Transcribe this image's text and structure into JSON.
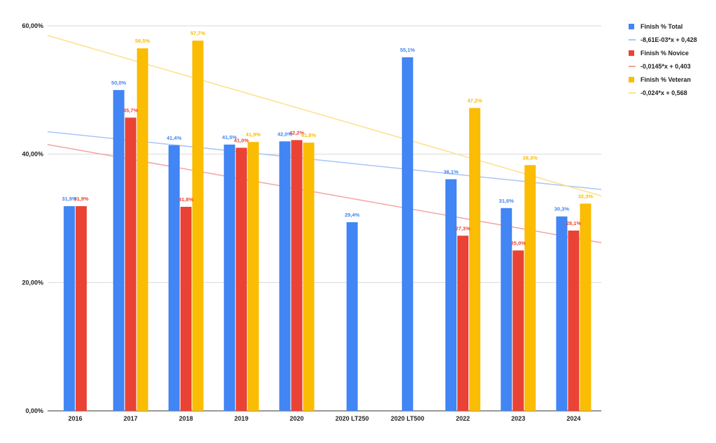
{
  "chart_data": {
    "type": "bar",
    "title": "",
    "xlabel": "",
    "ylabel": "",
    "ylim": [
      0,
      60
    ],
    "y_ticks": [
      "0,00%",
      "20,00%",
      "40,00%",
      "60,00%"
    ],
    "y_tick_values": [
      0,
      20,
      40,
      60
    ],
    "grid": true,
    "legend_position": "right",
    "categories": [
      "2016",
      "2017",
      "2018",
      "2019",
      "2020",
      "2020 LT250",
      "2020 LT500",
      "2022",
      "2023",
      "2024"
    ],
    "series": [
      {
        "name": "Finish % Total",
        "color": "#4285F4",
        "values": [
          31.9,
          50.0,
          41.4,
          41.5,
          42.0,
          29.4,
          55.1,
          36.1,
          31.6,
          30.3
        ],
        "labels": [
          "31,9%",
          "50,0%",
          "41,4%",
          "41,5%",
          "42,0%",
          "29,4%",
          "55,1%",
          "36,1%",
          "31,6%",
          "30,3%"
        ]
      },
      {
        "name": "Finish % Novice",
        "color": "#EA4335",
        "values": [
          31.9,
          45.7,
          31.8,
          41.0,
          42.2,
          null,
          null,
          27.3,
          25.0,
          28.1
        ],
        "labels": [
          "31,9%",
          "45,7%",
          "31,8%",
          "41,0%",
          "42,2%",
          "",
          "",
          "27,3%",
          "25,0%",
          "28,1%"
        ]
      },
      {
        "name": "Finish % Veteran",
        "color": "#FBBC04",
        "values": [
          null,
          56.5,
          57.7,
          41.9,
          41.8,
          null,
          null,
          47.2,
          38.3,
          32.3
        ],
        "labels": [
          "",
          "56,5%",
          "57,7%",
          "41,9%",
          "41,8%",
          "",
          "",
          "47,2%",
          "38,3%",
          "32,3%"
        ]
      }
    ],
    "trendlines": [
      {
        "name": "-8,61E-03*x + 0,428",
        "color": "#A9C5F7",
        "start": 43.5,
        "end": 34.5
      },
      {
        "name": "-0,0145*x + 0,403",
        "color": "#F2A5A0",
        "start": 41.5,
        "end": 26.2
      },
      {
        "name": "-0,024*x + 0,568",
        "color": "#FCE08A",
        "start": 58.5,
        "end": 33.5
      }
    ]
  }
}
